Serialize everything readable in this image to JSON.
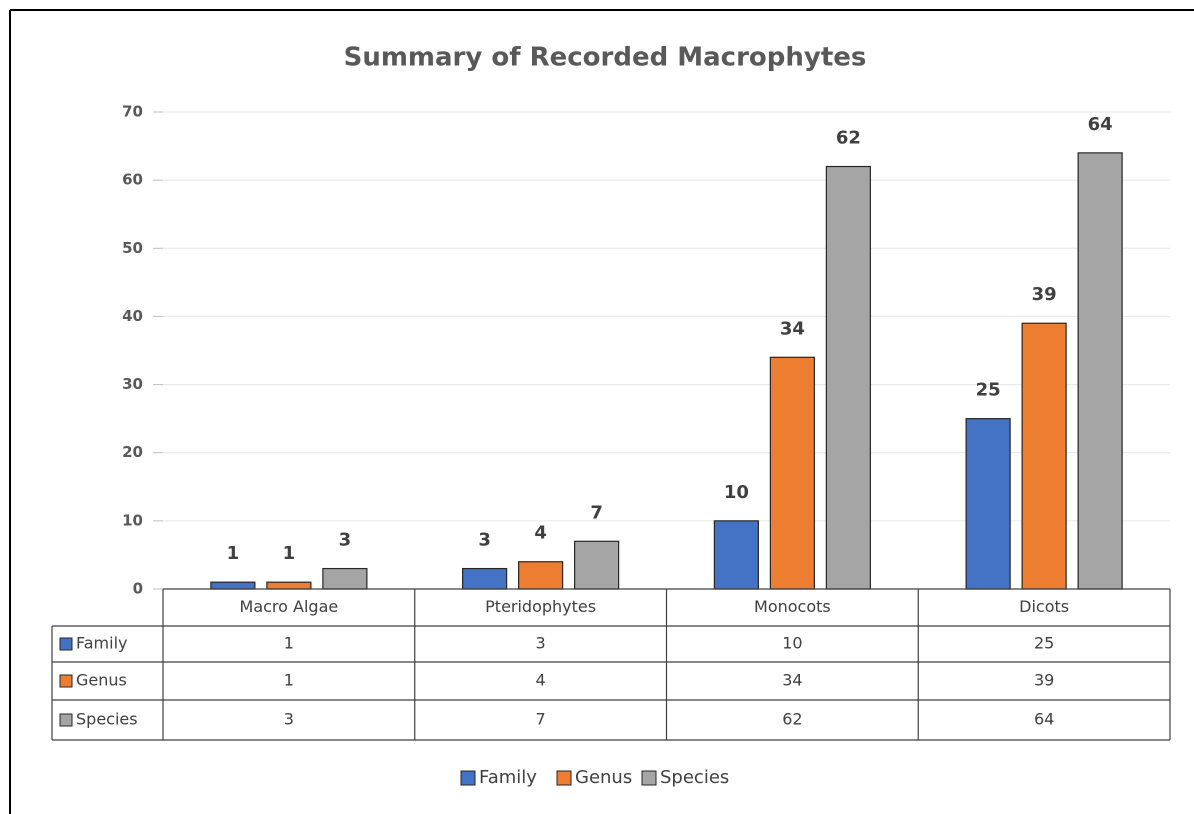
{
  "chart_data": {
    "type": "bar",
    "title": "Summary of Recorded Macrophytes",
    "categories": [
      "Macro Algae",
      "Pteridophytes",
      "Monocots",
      "Dicots"
    ],
    "series": [
      {
        "name": "Family",
        "color": "#4472c4",
        "values": [
          1,
          3,
          10,
          25
        ]
      },
      {
        "name": "Genus",
        "color": "#ed7d31",
        "values": [
          1,
          4,
          34,
          39
        ]
      },
      {
        "name": "Species",
        "color": "#a5a5a5",
        "values": [
          3,
          7,
          62,
          64
        ]
      }
    ],
    "ylim": [
      0,
      70
    ],
    "yticks": [
      0,
      10,
      20,
      30,
      40,
      50,
      60,
      70
    ],
    "grid": true,
    "legend": "bottom",
    "data_table": true
  }
}
